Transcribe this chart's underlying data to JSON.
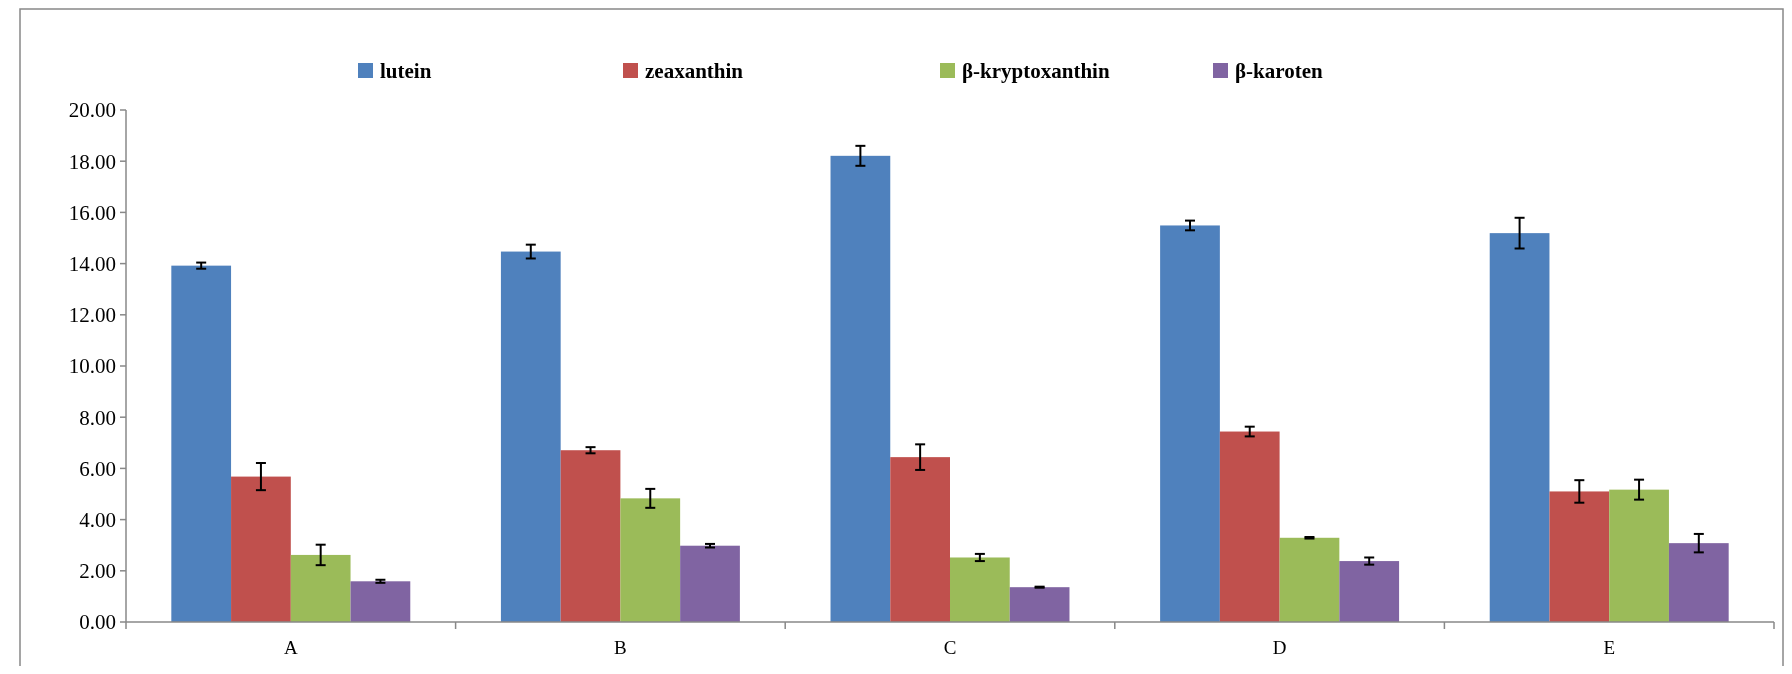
{
  "chart_data": {
    "type": "bar",
    "categories": [
      "A",
      "B",
      "C",
      "D",
      "E"
    ],
    "series": [
      {
        "name": "lutein",
        "color": "#4f81bd",
        "values": [
          13.92,
          14.47,
          18.21,
          15.49,
          15.19
        ],
        "errors": [
          0.12,
          0.27,
          0.39,
          0.19,
          0.6
        ]
      },
      {
        "name": "zeaxanthin",
        "color": "#c0504d",
        "values": [
          5.68,
          6.71,
          6.44,
          7.44,
          5.1
        ],
        "errors": [
          0.53,
          0.12,
          0.5,
          0.19,
          0.44
        ]
      },
      {
        "name": "β-kryptoxanthin",
        "color": "#9bbb59",
        "values": [
          2.62,
          4.83,
          2.52,
          3.29,
          5.17
        ],
        "errors": [
          0.4,
          0.37,
          0.14,
          0.03,
          0.39
        ]
      },
      {
        "name": "β-karoten",
        "color": "#8064a2",
        "values": [
          1.59,
          2.98,
          1.36,
          2.38,
          3.08
        ],
        "errors": [
          0.06,
          0.07,
          0.02,
          0.14,
          0.36
        ]
      }
    ],
    "ylim": [
      0,
      20
    ],
    "yticks": [
      {
        "value": 0,
        "label": "0.00"
      },
      {
        "value": 2,
        "label": "2.00"
      },
      {
        "value": 4,
        "label": "4.00"
      },
      {
        "value": 6,
        "label": "6.00"
      },
      {
        "value": 8,
        "label": "8.00"
      },
      {
        "value": 10,
        "label": "10.00"
      },
      {
        "value": 12,
        "label": "12.00"
      },
      {
        "value": 14,
        "label": "14.00"
      },
      {
        "value": 16,
        "label": "16.00"
      },
      {
        "value": 18,
        "label": "18.00"
      },
      {
        "value": 20,
        "label": "20.00"
      }
    ],
    "grid": false,
    "legend": "top"
  }
}
